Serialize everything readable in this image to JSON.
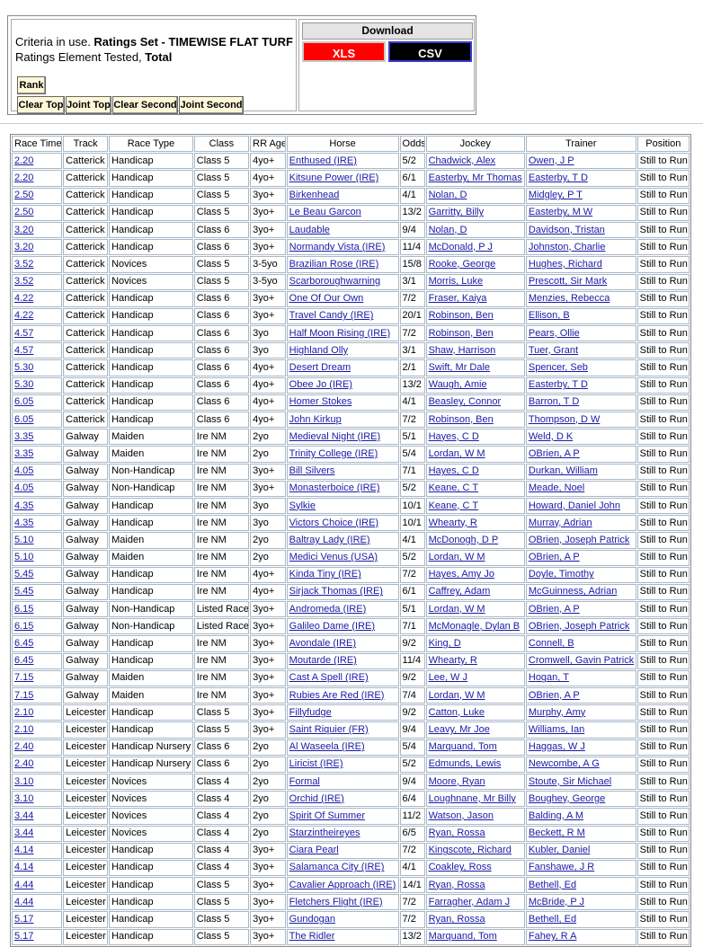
{
  "header": {
    "criteria": [
      "Criteria in use. ",
      "Ratings Set - TIMEWISE FLAT TURF",
      "Ratings Element Tested, ",
      "Total"
    ],
    "buttons": {
      "rank": "Rank",
      "row": [
        "Clear Top",
        "Joint Top",
        "Clear Second",
        "Joint Second"
      ]
    },
    "download": {
      "title": "Download",
      "xls": "XLS",
      "csv": "CSV"
    }
  },
  "table": {
    "columns": [
      "Race Time",
      "Track",
      "Race Type",
      "Class",
      "RR Age",
      "Horse",
      "Odds",
      "Jockey",
      "Trainer",
      "Position"
    ],
    "rows": [
      [
        "2.20",
        "Catterick",
        "Handicap",
        "Class 5",
        "4yo+",
        "Enthused (IRE)",
        "5/2",
        "Chadwick, Alex",
        "Owen, J P",
        "Still to Run"
      ],
      [
        "2.20",
        "Catterick",
        "Handicap",
        "Class 5",
        "4yo+",
        "Kitsune Power (IRE)",
        "6/1",
        "Easterby, Mr Thomas",
        "Easterby, T D",
        "Still to Run"
      ],
      [
        "2.50",
        "Catterick",
        "Handicap",
        "Class 5",
        "3yo+",
        "Birkenhead",
        "4/1",
        "Nolan, D",
        "Midgley, P T",
        "Still to Run"
      ],
      [
        "2.50",
        "Catterick",
        "Handicap",
        "Class 5",
        "3yo+",
        "Le Beau Garcon",
        "13/2",
        "Garritty, Billy",
        "Easterby, M W",
        "Still to Run"
      ],
      [
        "3.20",
        "Catterick",
        "Handicap",
        "Class 6",
        "3yo+",
        "Laudable",
        "9/4",
        "Nolan, D",
        "Davidson, Tristan",
        "Still to Run"
      ],
      [
        "3.20",
        "Catterick",
        "Handicap",
        "Class 6",
        "3yo+",
        "Normandy Vista (IRE)",
        "11/4",
        "McDonald, P J",
        "Johnston, Charlie",
        "Still to Run"
      ],
      [
        "3.52",
        "Catterick",
        "Novices",
        "Class 5",
        "3-5yo",
        "Brazilian Rose (IRE)",
        "15/8",
        "Rooke, George",
        "Hughes, Richard",
        "Still to Run"
      ],
      [
        "3.52",
        "Catterick",
        "Novices",
        "Class 5",
        "3-5yo",
        "Scarboroughwarning",
        "3/1",
        "Morris, Luke",
        "Prescott, Sir Mark",
        "Still to Run"
      ],
      [
        "4.22",
        "Catterick",
        "Handicap",
        "Class 6",
        "3yo+",
        "One Of Our Own",
        "7/2",
        "Fraser, Kaiya",
        "Menzies, Rebecca",
        "Still to Run"
      ],
      [
        "4.22",
        "Catterick",
        "Handicap",
        "Class 6",
        "3yo+",
        "Travel Candy (IRE)",
        "20/1",
        "Robinson, Ben",
        "Ellison, B",
        "Still to Run"
      ],
      [
        "4.57",
        "Catterick",
        "Handicap",
        "Class 6",
        "3yo",
        "Half Moon Rising (IRE)",
        "7/2",
        "Robinson, Ben",
        "Pears, Ollie",
        "Still to Run"
      ],
      [
        "4.57",
        "Catterick",
        "Handicap",
        "Class 6",
        "3yo",
        "Highland Olly",
        "3/1",
        "Shaw, Harrison",
        "Tuer, Grant",
        "Still to Run"
      ],
      [
        "5.30",
        "Catterick",
        "Handicap",
        "Class 6",
        "4yo+",
        "Desert Dream",
        "2/1",
        "Swift, Mr Dale",
        "Spencer, Seb",
        "Still to Run"
      ],
      [
        "5.30",
        "Catterick",
        "Handicap",
        "Class 6",
        "4yo+",
        "Obee Jo (IRE)",
        "13/2",
        "Waugh, Amie",
        "Easterby, T D",
        "Still to Run"
      ],
      [
        "6.05",
        "Catterick",
        "Handicap",
        "Class 6",
        "4yo+",
        "Homer Stokes",
        "4/1",
        "Beasley, Connor",
        "Barron, T D",
        "Still to Run"
      ],
      [
        "6.05",
        "Catterick",
        "Handicap",
        "Class 6",
        "4yo+",
        "John Kirkup",
        "7/2",
        "Robinson, Ben",
        "Thompson, D W",
        "Still to Run"
      ],
      [
        "3.35",
        "Galway",
        "Maiden",
        "Ire NM",
        "2yo",
        "Medieval Night (IRE)",
        "5/1",
        "Hayes, C D",
        "Weld, D K",
        "Still to Run"
      ],
      [
        "3.35",
        "Galway",
        "Maiden",
        "Ire NM",
        "2yo",
        "Trinity College (IRE)",
        "5/4",
        "Lordan, W M",
        "OBrien, A P",
        "Still to Run"
      ],
      [
        "4.05",
        "Galway",
        "Non-Handicap",
        "Ire NM",
        "3yo+",
        "Bill Silvers",
        "7/1",
        "Hayes, C D",
        "Durkan, William",
        "Still to Run"
      ],
      [
        "4.05",
        "Galway",
        "Non-Handicap",
        "Ire NM",
        "3yo+",
        "Monasterboice (IRE)",
        "5/2",
        "Keane, C T",
        "Meade, Noel",
        "Still to Run"
      ],
      [
        "4.35",
        "Galway",
        "Handicap",
        "Ire NM",
        "3yo",
        "Sylkie",
        "10/1",
        "Keane, C T",
        "Howard, Daniel John",
        "Still to Run"
      ],
      [
        "4.35",
        "Galway",
        "Handicap",
        "Ire NM",
        "3yo",
        "Victors Choice (IRE)",
        "10/1",
        "Whearty, R",
        "Murray, Adrian",
        "Still to Run"
      ],
      [
        "5.10",
        "Galway",
        "Maiden",
        "Ire NM",
        "2yo",
        "Baltray Lady (IRE)",
        "4/1",
        "McDonogh, D P",
        "OBrien, Joseph Patrick",
        "Still to Run"
      ],
      [
        "5.10",
        "Galway",
        "Maiden",
        "Ire NM",
        "2yo",
        "Medici Venus (USA)",
        "5/2",
        "Lordan, W M",
        "OBrien, A P",
        "Still to Run"
      ],
      [
        "5.45",
        "Galway",
        "Handicap",
        "Ire NM",
        "4yo+",
        "Kinda Tiny (IRE)",
        "7/2",
        "Hayes, Amy Jo",
        "Doyle, Timothy",
        "Still to Run"
      ],
      [
        "5.45",
        "Galway",
        "Handicap",
        "Ire NM",
        "4yo+",
        "Sirjack Thomas (IRE)",
        "6/1",
        "Caffrey, Adam",
        "McGuinness, Adrian",
        "Still to Run"
      ],
      [
        "6.15",
        "Galway",
        "Non-Handicap",
        "Listed Race",
        "3yo+",
        "Andromeda (IRE)",
        "5/1",
        "Lordan, W M",
        "OBrien, A P",
        "Still to Run"
      ],
      [
        "6.15",
        "Galway",
        "Non-Handicap",
        "Listed Race",
        "3yo+",
        "Galileo Dame (IRE)",
        "7/1",
        "McMonagle, Dylan B",
        "OBrien, Joseph Patrick",
        "Still to Run"
      ],
      [
        "6.45",
        "Galway",
        "Handicap",
        "Ire NM",
        "3yo+",
        "Avondale (IRE)",
        "9/2",
        "King, D",
        "Connell, B",
        "Still to Run"
      ],
      [
        "6.45",
        "Galway",
        "Handicap",
        "Ire NM",
        "3yo+",
        "Moutarde (IRE)",
        "11/4",
        "Whearty, R",
        "Cromwell, Gavin Patrick",
        "Still to Run"
      ],
      [
        "7.15",
        "Galway",
        "Maiden",
        "Ire NM",
        "3yo+",
        "Cast A Spell (IRE)",
        "9/2",
        "Lee, W J",
        "Hogan, T",
        "Still to Run"
      ],
      [
        "7.15",
        "Galway",
        "Maiden",
        "Ire NM",
        "3yo+",
        "Rubies Are Red (IRE)",
        "7/4",
        "Lordan, W M",
        "OBrien, A P",
        "Still to Run"
      ],
      [
        "2.10",
        "Leicester",
        "Handicap",
        "Class 5",
        "3yo+",
        "Fillyfudge",
        "9/2",
        "Catton, Luke",
        "Murphy, Amy",
        "Still to Run"
      ],
      [
        "2.10",
        "Leicester",
        "Handicap",
        "Class 5",
        "3yo+",
        "Saint Riquier (FR)",
        "9/4",
        "Leavy, Mr Joe",
        "Williams, Ian",
        "Still to Run"
      ],
      [
        "2.40",
        "Leicester",
        "Handicap Nursery",
        "Class 6",
        "2yo",
        "Al Waseela (IRE)",
        "5/4",
        "Marquand, Tom",
        "Haggas, W J",
        "Still to Run"
      ],
      [
        "2.40",
        "Leicester",
        "Handicap Nursery",
        "Class 6",
        "2yo",
        "Liricist (IRE)",
        "5/2",
        "Edmunds, Lewis",
        "Newcombe, A G",
        "Still to Run"
      ],
      [
        "3.10",
        "Leicester",
        "Novices",
        "Class 4",
        "2yo",
        "Formal",
        "9/4",
        "Moore, Ryan",
        "Stoute, Sir Michael",
        "Still to Run"
      ],
      [
        "3.10",
        "Leicester",
        "Novices",
        "Class 4",
        "2yo",
        "Orchid (IRE)",
        "6/4",
        "Loughnane, Mr Billy",
        "Boughey, George",
        "Still to Run"
      ],
      [
        "3.44",
        "Leicester",
        "Novices",
        "Class 4",
        "2yo",
        "Spirit Of Summer",
        "11/2",
        "Watson, Jason",
        "Balding, A M",
        "Still to Run"
      ],
      [
        "3.44",
        "Leicester",
        "Novices",
        "Class 4",
        "2yo",
        "Starzintheireyes",
        "6/5",
        "Ryan, Rossa",
        "Beckett, R M",
        "Still to Run"
      ],
      [
        "4.14",
        "Leicester",
        "Handicap",
        "Class 4",
        "3yo+",
        "Ciara Pearl",
        "7/2",
        "Kingscote, Richard",
        "Kubler, Daniel",
        "Still to Run"
      ],
      [
        "4.14",
        "Leicester",
        "Handicap",
        "Class 4",
        "3yo+",
        "Salamanca City (IRE)",
        "4/1",
        "Coakley, Ross",
        "Fanshawe, J R",
        "Still to Run"
      ],
      [
        "4.44",
        "Leicester",
        "Handicap",
        "Class 5",
        "3yo+",
        "Cavalier Approach (IRE)",
        "14/1",
        "Ryan, Rossa",
        "Bethell, Ed",
        "Still to Run"
      ],
      [
        "4.44",
        "Leicester",
        "Handicap",
        "Class 5",
        "3yo+",
        "Fletchers Flight (IRE)",
        "7/2",
        "Farragher, Adam J",
        "McBride, P J",
        "Still to Run"
      ],
      [
        "5.17",
        "Leicester",
        "Handicap",
        "Class 5",
        "3yo+",
        "Gundogan",
        "7/2",
        "Ryan, Rossa",
        "Bethell, Ed",
        "Still to Run"
      ],
      [
        "5.17",
        "Leicester",
        "Handicap",
        "Class 5",
        "3yo+",
        "The Ridler",
        "13/2",
        "Marquand, Tom",
        "Fahey, R A",
        "Still to Run"
      ]
    ]
  }
}
